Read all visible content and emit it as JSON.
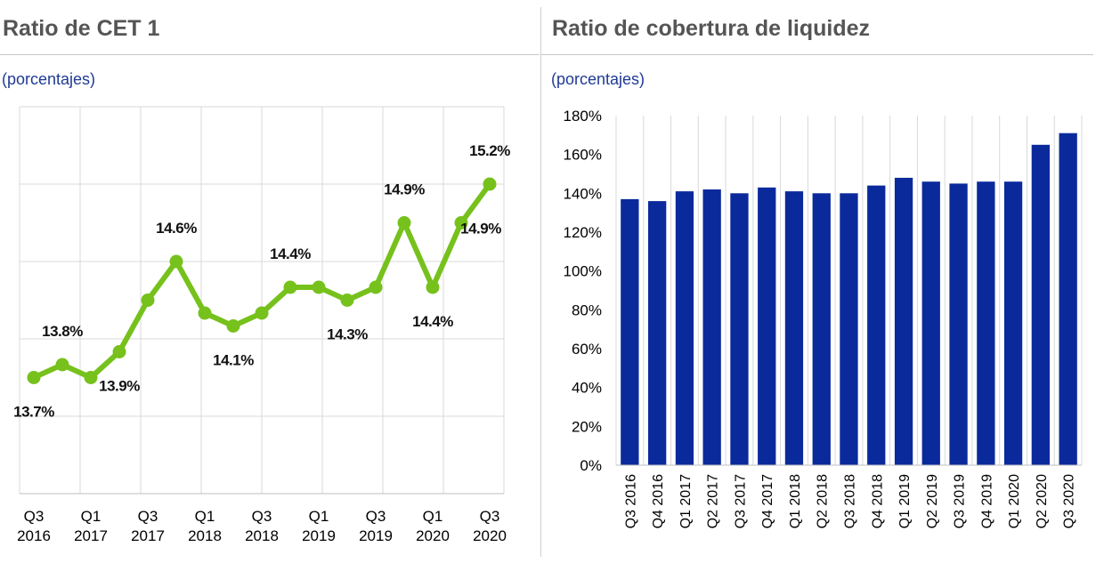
{
  "colors": {
    "line": "#76c11c",
    "bar": "#0a2a9c",
    "title": "#555555",
    "subtitle": "#1f3a93",
    "grid": "#d9d9d9",
    "axis_text": "#000000"
  },
  "left": {
    "title": "Ratio de CET 1",
    "subtitle": "(porcentajes)",
    "x_labels": [
      [
        "Q3",
        "2016"
      ],
      [
        "Q1",
        "2017"
      ],
      [
        "Q3",
        "2017"
      ],
      [
        "Q1",
        "2018"
      ],
      [
        "Q3",
        "2018"
      ],
      [
        "Q1",
        "2019"
      ],
      [
        "Q3",
        "2019"
      ],
      [
        "Q1",
        "2020"
      ],
      [
        "Q3",
        "2020"
      ]
    ],
    "chart_data": {
      "type": "line",
      "categories": [
        "Q3 2016",
        "Q4 2016",
        "Q1 2017",
        "Q2 2017",
        "Q3 2017",
        "Q4 2017",
        "Q1 2018",
        "Q2 2018",
        "Q3 2018",
        "Q4 2018",
        "Q1 2019",
        "Q2 2019",
        "Q3 2019",
        "Q4 2019",
        "Q1 2020",
        "Q2 2020",
        "Q3 2020"
      ],
      "values": [
        13.7,
        13.8,
        13.7,
        13.9,
        14.3,
        14.6,
        14.2,
        14.1,
        14.2,
        14.4,
        14.4,
        14.3,
        14.4,
        14.9,
        14.4,
        14.9,
        15.2
      ],
      "data_labels": [
        {
          "index": 0,
          "text": "13.7%",
          "pos": "below"
        },
        {
          "index": 1,
          "text": "13.8%",
          "pos": "above"
        },
        {
          "index": 3,
          "text": "13.9%",
          "pos": "below"
        },
        {
          "index": 5,
          "text": "14.6%",
          "pos": "above"
        },
        {
          "index": 7,
          "text": "14.1%",
          "pos": "below"
        },
        {
          "index": 9,
          "text": "14.4%",
          "pos": "above"
        },
        {
          "index": 11,
          "text": "14.3%",
          "pos": "below"
        },
        {
          "index": 13,
          "text": "14.9%",
          "pos": "above"
        },
        {
          "index": 14,
          "text": "14.4%",
          "pos": "below"
        },
        {
          "index": 15,
          "text": "14.9%",
          "pos": "below-right"
        },
        {
          "index": 16,
          "text": "15.2%",
          "pos": "above"
        }
      ],
      "ylim": [
        12.8,
        15.8
      ],
      "grid": true
    }
  },
  "right": {
    "title": "Ratio de cobertura de liquidez",
    "subtitle": "(porcentajes)",
    "chart_data": {
      "type": "bar",
      "categories": [
        "Q3 2016",
        "Q4 2016",
        "Q1 2017",
        "Q2 2017",
        "Q3 2017",
        "Q4 2017",
        "Q1 2018",
        "Q2 2018",
        "Q3 2018",
        "Q4 2018",
        "Q1 2019",
        "Q2 2019",
        "Q3 2019",
        "Q4 2019",
        "Q1 2020",
        "Q2 2020",
        "Q3 2020"
      ],
      "values": [
        137,
        136,
        141,
        142,
        140,
        143,
        141,
        140,
        140,
        144,
        148,
        146,
        145,
        146,
        146,
        165,
        171
      ],
      "ylim": [
        0,
        180
      ],
      "yticks": [
        "0%",
        "20%",
        "40%",
        "60%",
        "80%",
        "100%",
        "120%",
        "140%",
        "160%",
        "180%"
      ],
      "grid": true
    }
  }
}
